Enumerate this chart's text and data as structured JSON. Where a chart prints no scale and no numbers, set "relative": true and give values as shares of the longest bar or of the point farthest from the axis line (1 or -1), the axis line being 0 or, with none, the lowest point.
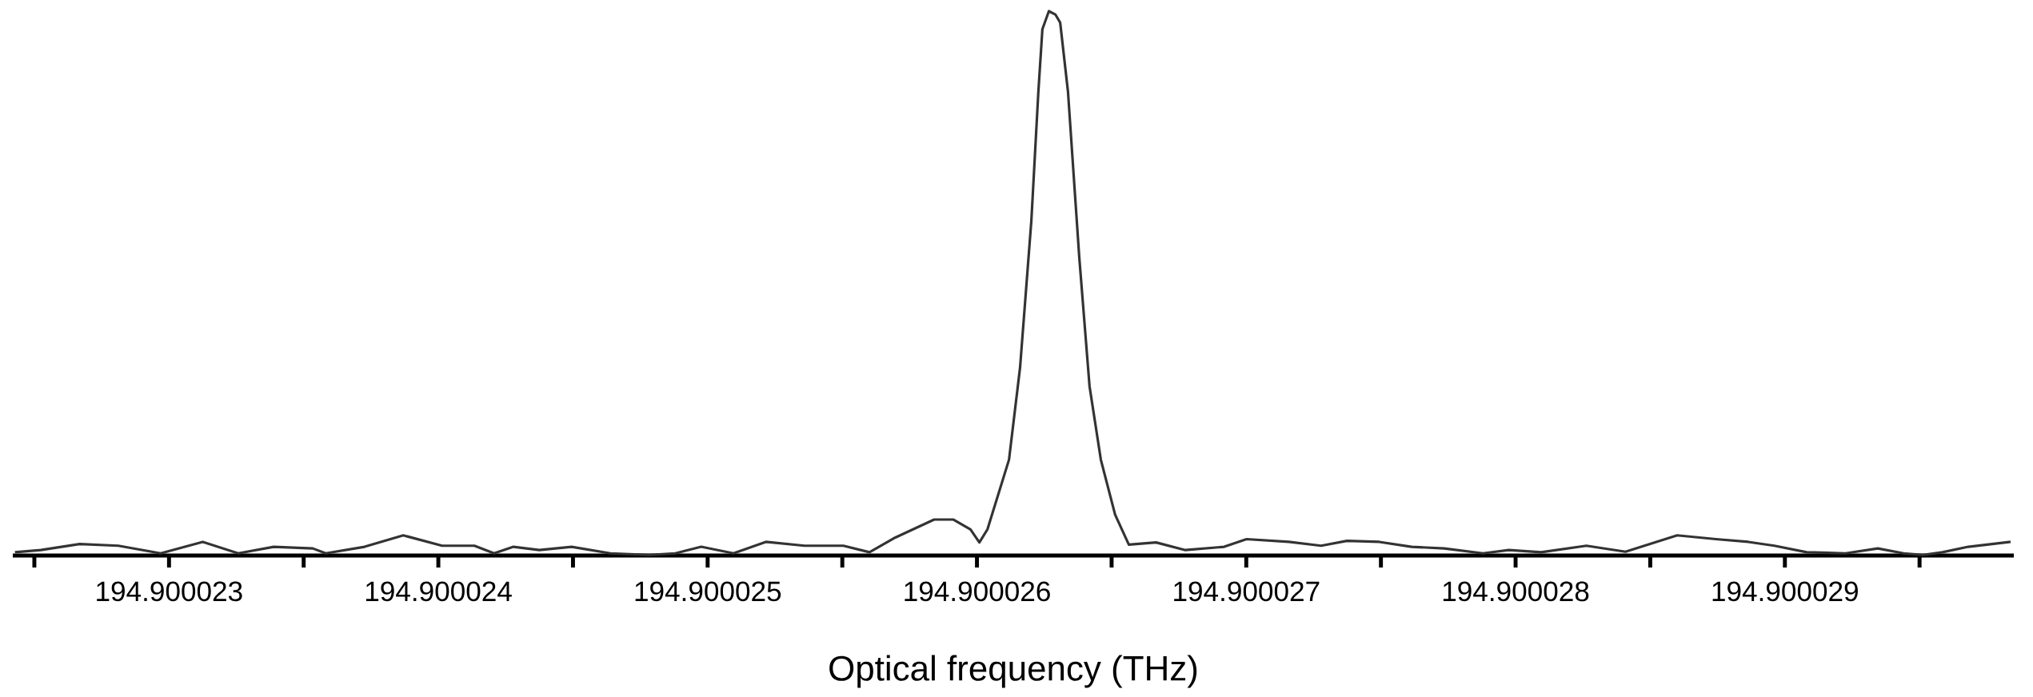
{
  "chart_data": {
    "type": "line",
    "relative": true,
    "xlabel": "Optical frequency (THz)",
    "xlim": [
      194.90002242,
      194.90002985
    ],
    "xticks": [
      {
        "value": 194.9000225,
        "label": null
      },
      194.900023,
      {
        "value": 194.9000235,
        "label": null
      },
      194.900024,
      {
        "value": 194.9000245,
        "label": null
      },
      194.900025,
      {
        "value": 194.9000255,
        "label": null
      },
      194.900026,
      {
        "value": 194.9000265,
        "label": null
      },
      194.900027,
      {
        "value": 194.9000275,
        "label": null
      },
      194.900028,
      {
        "value": 194.9000285,
        "label": null
      },
      194.900029,
      {
        "value": 194.9000295,
        "label": null
      }
    ],
    "grid": false,
    "marker": "none",
    "line_style": "solid",
    "series": [
      {
        "color": "#333333",
        "x": [
          194.900022428,
          194.900022524,
          194.900022668,
          194.900022812,
          194.900022969,
          194.900023125,
          194.900023257,
          194.900023389,
          194.900023534,
          194.900023582,
          194.900023726,
          194.90002387,
          194.900024014,
          194.900024134,
          194.900024207,
          194.900024279,
          194.900024375,
          194.900024495,
          194.900024639,
          194.900024783,
          194.90002488,
          194.900024976,
          194.900025096,
          194.900025216,
          194.90002536,
          194.900025504,
          194.900025601,
          194.900025697,
          194.900025841,
          194.900025913,
          194.900025976,
          194.900026009,
          194.900026039,
          194.900026119,
          194.90002616,
          194.900026202,
          194.900026228,
          194.900026243,
          194.900026267,
          194.900026291,
          194.900026309,
          194.900026338,
          194.90002638,
          194.900026418,
          194.90002646,
          194.900026513,
          194.900026564,
          194.900026665,
          194.900026774,
          194.900026918,
          194.900027001,
          194.900027158,
          194.900027278,
          194.900027374,
          194.900027494,
          194.900027614,
          194.900027735,
          194.900027879,
          194.900027975,
          194.900028095,
          194.900028263,
          194.900028408,
          194.9000286,
          194.900028744,
          194.900028864,
          194.900028961,
          194.900029081,
          194.900029225,
          194.900029345,
          194.900029441,
          194.900029513,
          194.900029585,
          194.900029681,
          194.900029838
        ],
        "values": [
          0.006,
          0.01,
          0.021,
          0.018,
          0.004,
          0.025,
          0.004,
          0.016,
          0.013,
          0.004,
          0.016,
          0.037,
          0.018,
          0.018,
          0.004,
          0.016,
          0.01,
          0.016,
          0.004,
          0.001,
          0.004,
          0.016,
          0.004,
          0.025,
          0.018,
          0.018,
          0.006,
          0.033,
          0.066,
          0.066,
          0.048,
          0.024,
          0.048,
          0.176,
          0.345,
          0.615,
          0.852,
          0.967,
          1.0,
          0.994,
          0.979,
          0.852,
          0.547,
          0.311,
          0.176,
          0.075,
          0.02,
          0.024,
          0.01,
          0.016,
          0.03,
          0.025,
          0.018,
          0.027,
          0.025,
          0.016,
          0.013,
          0.004,
          0.01,
          0.006,
          0.018,
          0.007,
          0.037,
          0.03,
          0.025,
          0.018,
          0.006,
          0.004,
          0.013,
          0.004,
          0.001,
          0.006,
          0.016,
          0.025
        ]
      }
    ]
  }
}
